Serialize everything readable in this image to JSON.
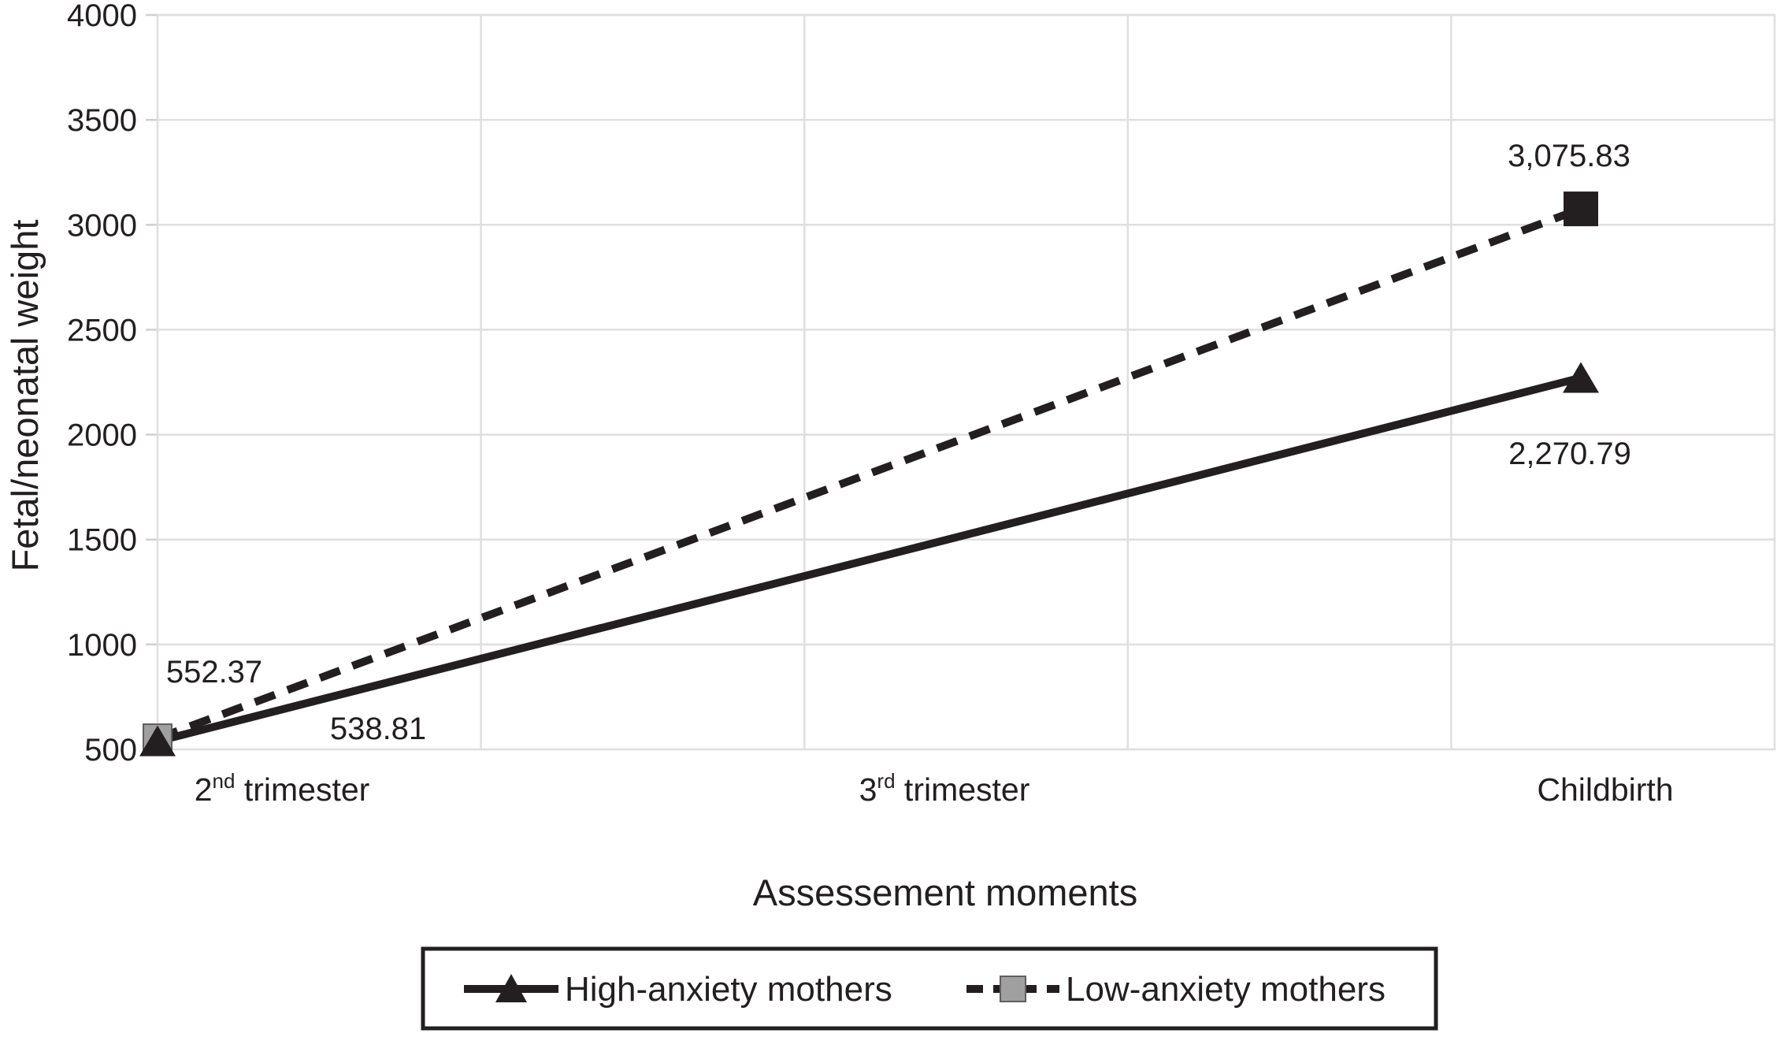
{
  "figure": {
    "background_color": "#ffffff",
    "ink_color": "#231f20",
    "grid_color": "#dfdfdf",
    "gray_marker_color": "#a0a0a0",
    "gray_marker_edge_color": "#5f5f5f"
  },
  "chart_data": {
    "type": "line",
    "title": "",
    "xlabel": "Assessement moments",
    "ylabel": "Fetal/neonatal weight",
    "ylim": [
      500,
      4000
    ],
    "yticks": [
      4000,
      3500,
      3000,
      2500,
      2000,
      1500,
      1000,
      500
    ],
    "x_gridline_divisions": 5,
    "grid": true,
    "legend_position": "bottom",
    "categories": [
      {
        "base": "2",
        "sup": "nd",
        "rest": " trimester"
      },
      {
        "base": "3",
        "sup": "rd",
        "rest": " trimester"
      },
      {
        "base": "Childbirth",
        "sup": "",
        "rest": ""
      }
    ],
    "series": [
      {
        "name": "High-anxiety mothers",
        "line_style": "solid",
        "marker": "triangle",
        "color": "#231f20",
        "marker_fills": [
          "#231f20",
          "#231f20"
        ],
        "points": [
          {
            "category_index": 0,
            "value": 538.81,
            "label": "538.81"
          },
          {
            "category_index": 2,
            "value": 2270.79,
            "label": "2,270.79"
          }
        ]
      },
      {
        "name": "Low-anxiety mothers",
        "line_style": "dashed",
        "marker": "square",
        "color": "#231f20",
        "marker_fills": [
          "#a0a0a0",
          "#231f20"
        ],
        "points": [
          {
            "category_index": 0,
            "value": 552.37,
            "label": "552.37"
          },
          {
            "category_index": 2,
            "value": 3075.83,
            "label": "3,075.83"
          }
        ]
      }
    ]
  }
}
